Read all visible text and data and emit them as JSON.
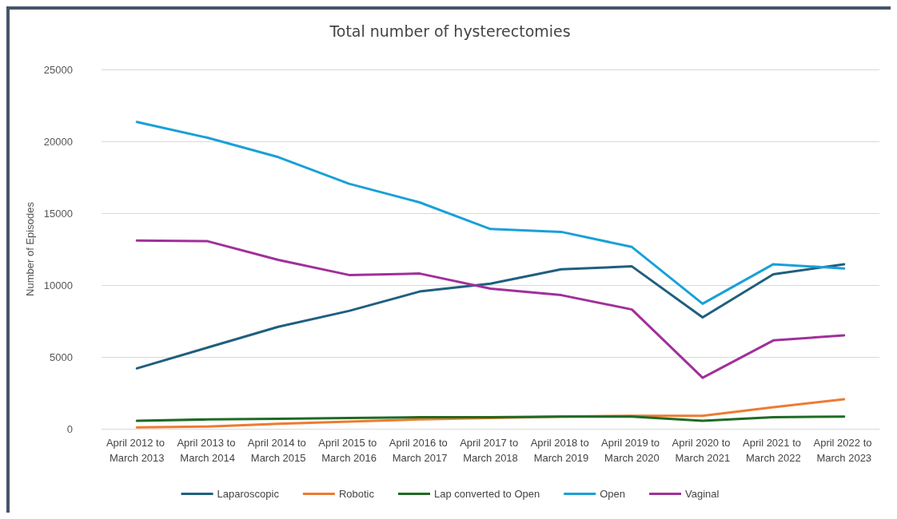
{
  "chart_data": {
    "type": "line",
    "title": "Total number of hysterectomies",
    "ylabel": "Number of Episodes",
    "categories": [
      "April 2012 to March 2013",
      "April 2013 to March 2014",
      "April 2014 to March 2015",
      "April 2015 to March 2016",
      "April 2016 to March 2017",
      "April 2017 to March 2018",
      "April 2018 to March 2019",
      "April 2019 to March 2020",
      "April 2020 to March 2021",
      "April 2021 to March 2022",
      "April 2022 to March 2023"
    ],
    "series": [
      {
        "name": "Laparoscopic",
        "color": "#1f5f7f",
        "values": [
          4200,
          5650,
          7100,
          8200,
          9550,
          10100,
          11100,
          11300,
          7750,
          10750,
          11450
        ]
      },
      {
        "name": "Robotic",
        "color": "#ee7b30",
        "values": [
          100,
          150,
          350,
          500,
          650,
          750,
          850,
          900,
          900,
          1500,
          2050
        ]
      },
      {
        "name": "Lap converted to Open",
        "color": "#1e6b23",
        "values": [
          550,
          650,
          700,
          750,
          800,
          800,
          850,
          850,
          550,
          800,
          850
        ]
      },
      {
        "name": "Open",
        "color": "#1aa0d8",
        "values": [
          21350,
          20250,
          18900,
          17050,
          15750,
          13900,
          13700,
          12650,
          8700,
          11450,
          11150
        ]
      },
      {
        "name": "Vaginal",
        "color": "#a0309a",
        "values": [
          13100,
          13050,
          11750,
          10700,
          10800,
          9750,
          9300,
          8300,
          3550,
          6150,
          6500
        ]
      }
    ],
    "ylim": [
      0,
      25000
    ],
    "yticks": [
      0,
      5000,
      10000,
      15000,
      20000,
      25000
    ],
    "grid": "y",
    "legend": "bottom",
    "marker": "none",
    "line_style": "solid"
  }
}
